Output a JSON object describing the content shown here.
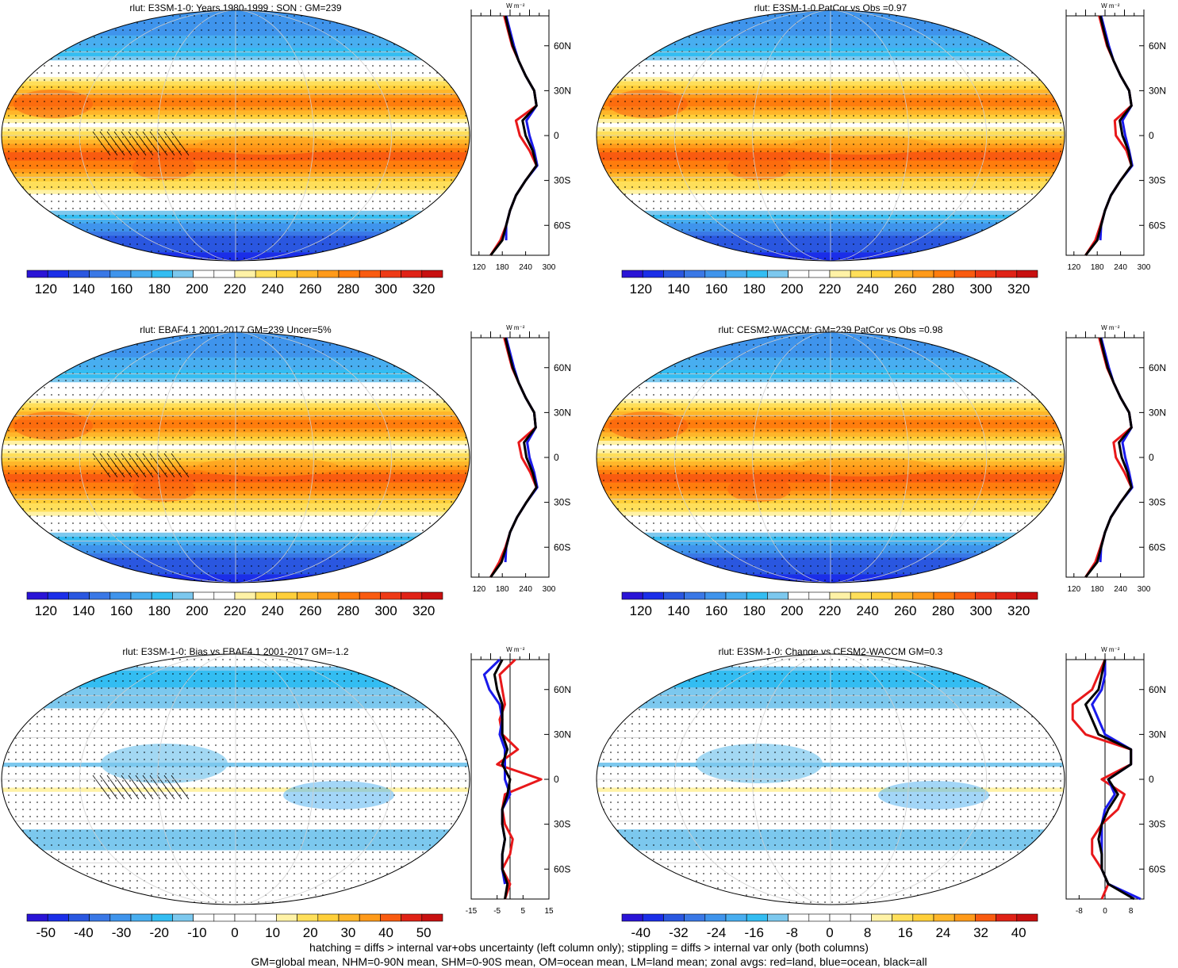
{
  "panels": [
    {
      "id": "p1",
      "title": "rlut: E3SM-1-0: Years 1980-1999 : SON : GM=239",
      "kind": "abs",
      "colorbar_ticks": [
        "120",
        "140",
        "160",
        "180",
        "200",
        "220",
        "240",
        "260",
        "280",
        "300",
        "320"
      ],
      "zonal_xticks": [
        "120",
        "180",
        "240",
        "300"
      ],
      "zonal_units": "W m⁻²",
      "hatching": true
    },
    {
      "id": "p2",
      "title": "rlut: E3SM-1-0 PatCor vs Obs =0.97",
      "kind": "abs",
      "colorbar_ticks": [
        "120",
        "140",
        "160",
        "180",
        "200",
        "220",
        "240",
        "260",
        "280",
        "300",
        "320"
      ],
      "zonal_xticks": [
        "120",
        "180",
        "240",
        "300"
      ],
      "zonal_units": "W m⁻²",
      "hatching": false
    },
    {
      "id": "p3",
      "title": "rlut: EBAF4.1 2001-2017 GM=239 Uncer=5%",
      "kind": "abs",
      "colorbar_ticks": [
        "120",
        "140",
        "160",
        "180",
        "200",
        "220",
        "240",
        "260",
        "280",
        "300",
        "320"
      ],
      "zonal_xticks": [
        "120",
        "180",
        "240",
        "300"
      ],
      "zonal_units": "W m⁻²",
      "hatching": true
    },
    {
      "id": "p4",
      "title": "rlut: CESM2-WACCM: GM=239 PatCor vs Obs =0.98",
      "kind": "abs",
      "colorbar_ticks": [
        "120",
        "140",
        "160",
        "180",
        "200",
        "220",
        "240",
        "260",
        "280",
        "300",
        "320"
      ],
      "zonal_xticks": [
        "120",
        "180",
        "240",
        "300"
      ],
      "zonal_units": "W m⁻²",
      "hatching": false
    },
    {
      "id": "p5",
      "title": "rlut: E3SM-1-0: Bias vs EBAF4.1 2001-2017  GM=-1.2",
      "kind": "bias",
      "colorbar_ticks": [
        "-50",
        "-40",
        "-30",
        "-20",
        "-10",
        "0",
        "10",
        "20",
        "30",
        "40",
        "50"
      ],
      "zonal_xticks": [
        "-15",
        "-5",
        "5",
        "15"
      ],
      "zonal_units": "W m⁻²",
      "hatching": true
    },
    {
      "id": "p6",
      "title": "rlut: E3SM-1-0: Change vs CESM2-WACCM GM=0.3",
      "kind": "change",
      "colorbar_ticks": [
        "-40",
        "-32",
        "-24",
        "-16",
        "-8",
        "0",
        "8",
        "16",
        "24",
        "32",
        "40"
      ],
      "zonal_xticks": [
        "-8",
        "0",
        "8"
      ],
      "zonal_units": "W m⁻²",
      "hatching": false
    }
  ],
  "lat_labels": [
    "60N",
    "30N",
    "0",
    "30S",
    "60S"
  ],
  "palettes": {
    "abs": [
      "#2a14d6",
      "#1b2ee8",
      "#2a57e0",
      "#3a78e6",
      "#3f94ec",
      "#48aef0",
      "#33bdf2",
      "#7cc8ee",
      "#ffffff",
      "#ffffff",
      "#fff2a6",
      "#ffdf5a",
      "#ffcf3a",
      "#ffb62a",
      "#ff9a1a",
      "#ff7d0d",
      "#f95b10",
      "#ee3a16",
      "#e02216",
      "#c81010"
    ],
    "diff": [
      "#2a14d6",
      "#1b2ee8",
      "#2a57e0",
      "#3a78e6",
      "#3f94ec",
      "#48aef0",
      "#33bdf2",
      "#7cc8ee",
      "#ffffff",
      "#ffffff",
      "#ffffff",
      "#ffffff",
      "#fff2a6",
      "#ffdf5a",
      "#ffcf3a",
      "#ffb62a",
      "#ff9a1a",
      "#f95b10",
      "#e02216",
      "#c81010"
    ]
  },
  "chart_data": [
    {
      "type": "heatmap",
      "title": "rlut: E3SM-1-0: Years 1980-1999 : SON : GM=239",
      "colorbar_range": [
        120,
        320
      ],
      "zonal_avg": {
        "x_range": [
          100,
          300
        ],
        "lat": [
          -80,
          -70,
          -60,
          -50,
          -40,
          -30,
          -20,
          -10,
          0,
          10,
          20,
          30,
          40,
          50,
          60,
          70,
          80
        ],
        "land": [
          150,
          175,
          190,
          200,
          215,
          240,
          268,
          250,
          225,
          215,
          268,
          262,
          240,
          222,
          205,
          195,
          185
        ],
        "ocean": [
          null,
          190,
          190,
          200,
          215,
          240,
          270,
          262,
          250,
          242,
          268,
          262,
          240,
          222,
          210,
          200,
          190
        ],
        "all": [
          150,
          180,
          190,
          200,
          215,
          240,
          268,
          258,
          240,
          232,
          268,
          262,
          240,
          222,
          207,
          197,
          188
        ]
      }
    },
    {
      "type": "heatmap",
      "title": "rlut: E3SM-1-0 PatCor vs Obs =0.97",
      "colorbar_range": [
        120,
        320
      ],
      "zonal_avg": {
        "x_range": [
          100,
          300
        ],
        "lat": [
          -80,
          -70,
          -60,
          -50,
          -40,
          -30,
          -20,
          -10,
          0,
          10,
          20,
          30,
          40,
          50,
          60,
          70,
          80
        ],
        "land": [
          150,
          175,
          188,
          200,
          215,
          240,
          268,
          255,
          228,
          225,
          268,
          262,
          240,
          222,
          205,
          195,
          185
        ],
        "ocean": [
          null,
          188,
          190,
          200,
          215,
          240,
          270,
          262,
          252,
          245,
          268,
          262,
          240,
          222,
          210,
          200,
          190
        ],
        "all": [
          150,
          180,
          190,
          200,
          215,
          240,
          268,
          260,
          245,
          238,
          268,
          262,
          240,
          222,
          207,
          197,
          188
        ]
      }
    },
    {
      "type": "heatmap",
      "title": "rlut: EBAF4.1 2001-2017 GM=239 Uncer=5%",
      "colorbar_range": [
        120,
        320
      ],
      "zonal_avg": {
        "x_range": [
          100,
          300
        ],
        "lat": [
          -80,
          -70,
          -60,
          -50,
          -40,
          -30,
          -20,
          -10,
          0,
          10,
          20,
          30,
          40,
          50,
          60,
          70,
          80
        ],
        "land": [
          150,
          172,
          188,
          200,
          218,
          242,
          268,
          252,
          230,
          222,
          266,
          262,
          240,
          222,
          205,
          195,
          185
        ],
        "ocean": [
          null,
          188,
          190,
          200,
          218,
          242,
          270,
          262,
          250,
          244,
          266,
          262,
          240,
          222,
          210,
          200,
          190
        ],
        "all": [
          150,
          178,
          190,
          200,
          218,
          242,
          268,
          258,
          242,
          236,
          266,
          262,
          240,
          222,
          207,
          197,
          188
        ]
      }
    },
    {
      "type": "heatmap",
      "title": "rlut: CESM2-WACCM: GM=239 PatCor vs Obs =0.98",
      "colorbar_range": [
        120,
        320
      ],
      "zonal_avg": {
        "x_range": [
          100,
          300
        ],
        "lat": [
          -80,
          -70,
          -60,
          -50,
          -40,
          -30,
          -20,
          -10,
          0,
          10,
          20,
          30,
          40,
          50,
          60,
          70,
          80
        ],
        "land": [
          150,
          175,
          188,
          200,
          215,
          240,
          268,
          250,
          228,
          222,
          268,
          262,
          240,
          222,
          205,
          195,
          185
        ],
        "ocean": [
          null,
          188,
          190,
          200,
          215,
          240,
          270,
          262,
          252,
          245,
          268,
          262,
          240,
          222,
          210,
          200,
          190
        ],
        "all": [
          150,
          180,
          190,
          200,
          215,
          240,
          268,
          258,
          243,
          236,
          268,
          262,
          240,
          222,
          207,
          197,
          188
        ]
      }
    },
    {
      "type": "heatmap",
      "title": "rlut: E3SM-1-0: Bias vs EBAF4.1 2001-2017  GM=-1.2",
      "colorbar_range": [
        -50,
        50
      ],
      "zonal_avg": {
        "x_range": [
          -15,
          15
        ],
        "lat": [
          -80,
          -70,
          -60,
          -50,
          -40,
          -30,
          -20,
          -10,
          0,
          10,
          20,
          30,
          40,
          50,
          60,
          70,
          80
        ],
        "land": [
          -2,
          0,
          -3,
          0,
          1,
          -2,
          -3,
          -2,
          12,
          -5,
          3,
          -3,
          -4,
          -2,
          -3,
          -4,
          2
        ],
        "ocean": [
          null,
          -2,
          -3,
          -3,
          -2,
          -3,
          -3,
          0,
          -2,
          -2,
          -2,
          -4,
          -3,
          -4,
          -8,
          -10,
          -4
        ],
        "all": [
          -2,
          -1,
          -3,
          -3,
          -2,
          -3,
          -3,
          -1,
          0,
          -3,
          -1,
          -3,
          -3,
          -3,
          -5,
          -6,
          -3
        ]
      }
    },
    {
      "type": "heatmap",
      "title": "rlut: E3SM-1-0: Change vs CESM2-WACCM GM=0.3",
      "colorbar_range": [
        -40,
        40
      ],
      "zonal_avg": {
        "x_range": [
          -12,
          12
        ],
        "lat": [
          -80,
          -70,
          -60,
          -50,
          -40,
          -30,
          -20,
          -10,
          0,
          10,
          20,
          30,
          40,
          50,
          60,
          70,
          80
        ],
        "land": [
          -1,
          1,
          -1,
          -4,
          -4,
          -1,
          4,
          6,
          -1,
          8,
          8,
          -6,
          -10,
          -10,
          -4,
          -2,
          0
        ],
        "ocean": [
          11,
          1,
          -1,
          -1,
          -1,
          -1,
          0,
          3,
          1,
          8,
          8,
          0,
          -2,
          -4,
          -1,
          0,
          0
        ],
        "all": [
          9,
          1,
          -1,
          -1,
          -2,
          -1,
          1,
          4,
          1,
          8,
          8,
          -2,
          -4,
          -6,
          -2,
          -1,
          0
        ]
      }
    }
  ],
  "footer": {
    "line1": "hatching = diffs > internal var+obs uncertainty (left column only); stippling = diffs > internal var only (both columns)",
    "line2": "GM=global mean, NHM=0-90N mean, SHM=0-90S mean, OM=ocean mean, LM=land mean; zonal avgs: red=land, blue=ocean, black=all"
  }
}
